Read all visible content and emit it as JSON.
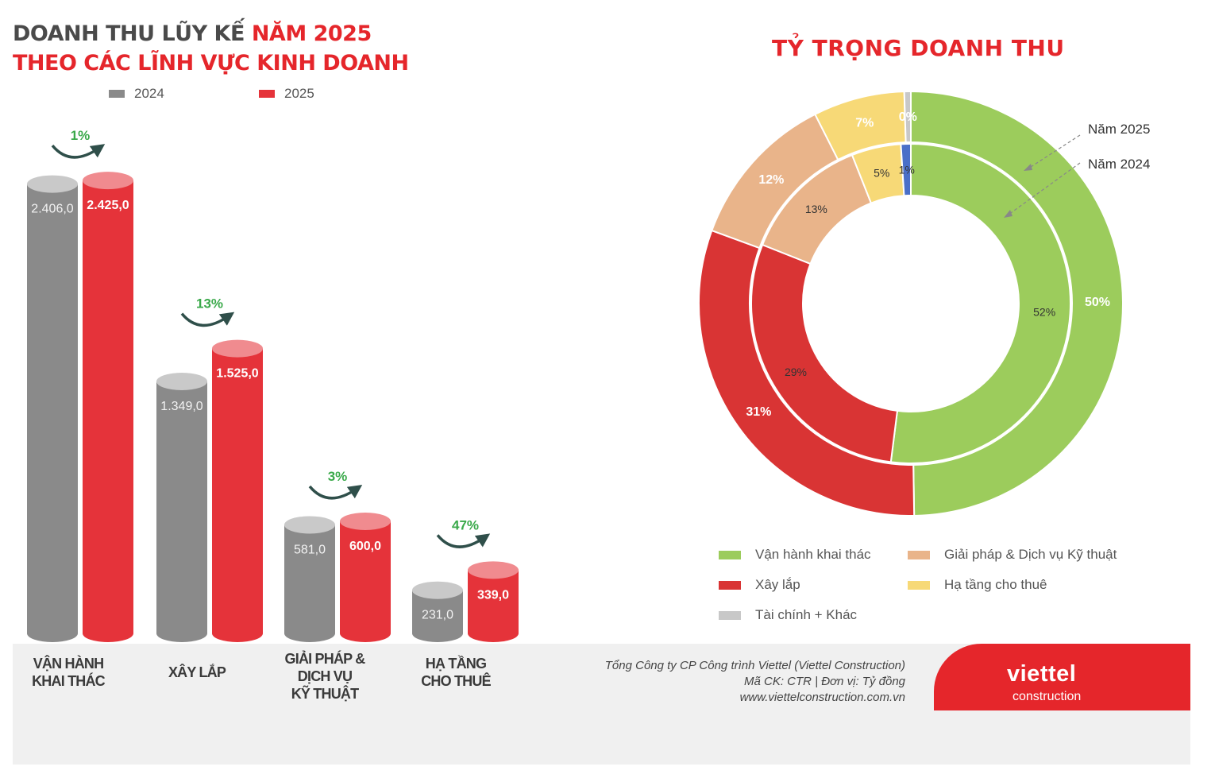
{
  "header": {
    "title_line1_a": "DOANH THU LŨY KẾ ",
    "title_line1_b": "NĂM 2025",
    "title_line2": "THEO CÁC LĨNH VỰC KINH DOANH"
  },
  "pie_title": "TỶ TRỌNG DOANH THU",
  "pie_ring_labels": {
    "outer": "Năm 2025",
    "inner": "Năm 2024"
  },
  "pie_legend": [
    {
      "label": "Vận hành khai thác",
      "color": "#9ccc5c"
    },
    {
      "label": "Giải pháp & Dịch vụ Kỹ thuật",
      "color": "#e9b48a"
    },
    {
      "label": "Xây lắp",
      "color": "#d93434"
    },
    {
      "label": "Hạ tầng cho thuê",
      "color": "#f7d977"
    },
    {
      "label": "Tài chính + Khác",
      "color": "#c8c8c8"
    }
  ],
  "categories_display": [
    {
      "line1": "VẬN HÀNH",
      "line2": "KHAI THÁC",
      "line3": ""
    },
    {
      "line1": "XÂY LẮP",
      "line2": "",
      "line3": ""
    },
    {
      "line1": "GIẢI PHÁP &",
      "line2": "DỊCH VỤ",
      "line3": "KỸ THUẬT"
    },
    {
      "line1": "HẠ TẦNG",
      "line2": "CHO THUÊ",
      "line3": ""
    }
  ],
  "footer": {
    "line1": "Tổng Công ty CP Công trình Viettel (Viettel Construction)",
    "line2": "Mã CK: CTR  |  Đơn vị: Tỷ đồng",
    "line3": "www.viettelconstruction.com.vn",
    "brand": "viettel",
    "brand_sub": "construction"
  },
  "colors": {
    "y2024": "#8a8a8a",
    "y2025": "#e5333a",
    "growth": "#3aa94a",
    "arrow": "#2f4f4a"
  },
  "chart_data": [
    {
      "type": "bar",
      "categories": [
        "VẬN HÀNH KHAI THÁC",
        "XÂY LẮP",
        "GIẢI PHÁP & DỊCH VỤ KỸ THUẬT",
        "HẠ TẦNG CHO THUÊ"
      ],
      "series": [
        {
          "name": "2024",
          "values": [
            2406.0,
            1349.0,
            581.0,
            231.0
          ],
          "labels": [
            "2.406,0",
            "1.349,0",
            "581,0",
            "231,0"
          ]
        },
        {
          "name": "2025",
          "values": [
            2425.0,
            1525.0,
            600.0,
            339.0
          ],
          "labels": [
            "2.425,0",
            "1.525,0",
            "600,0",
            "339,0"
          ]
        }
      ],
      "growth_labels": [
        "1%",
        "13%",
        "3%",
        "47%"
      ],
      "legend": "top-left",
      "grid": false
    },
    {
      "type": "pie",
      "title": "TỶ TRỌNG DOANH THU",
      "series": [
        {
          "name": "Năm 2025",
          "values": [
            50,
            31,
            12,
            7,
            0
          ],
          "labels": [
            "50%",
            "31%",
            "12%",
            "7%",
            "0%"
          ]
        },
        {
          "name": "Năm 2024",
          "values": [
            52,
            29,
            13,
            5,
            1
          ],
          "labels": [
            "52%",
            "29%",
            "13%",
            "5%",
            "1%"
          ]
        }
      ],
      "categories": [
        "Vận hành khai thác",
        "Xây lắp",
        "Giải pháp & Dịch vụ Kỹ thuật",
        "Hạ tầng cho thuê",
        "Tài chính + Khác"
      ],
      "colors_2025": [
        "#9ccc5c",
        "#d93434",
        "#e9b48a",
        "#f7d977",
        "#c8c8c8"
      ],
      "colors_2024": [
        "#9ccc5c",
        "#d93434",
        "#e9b48a",
        "#f7d977",
        "#4a6fc8"
      ],
      "legend": "bottom"
    }
  ]
}
